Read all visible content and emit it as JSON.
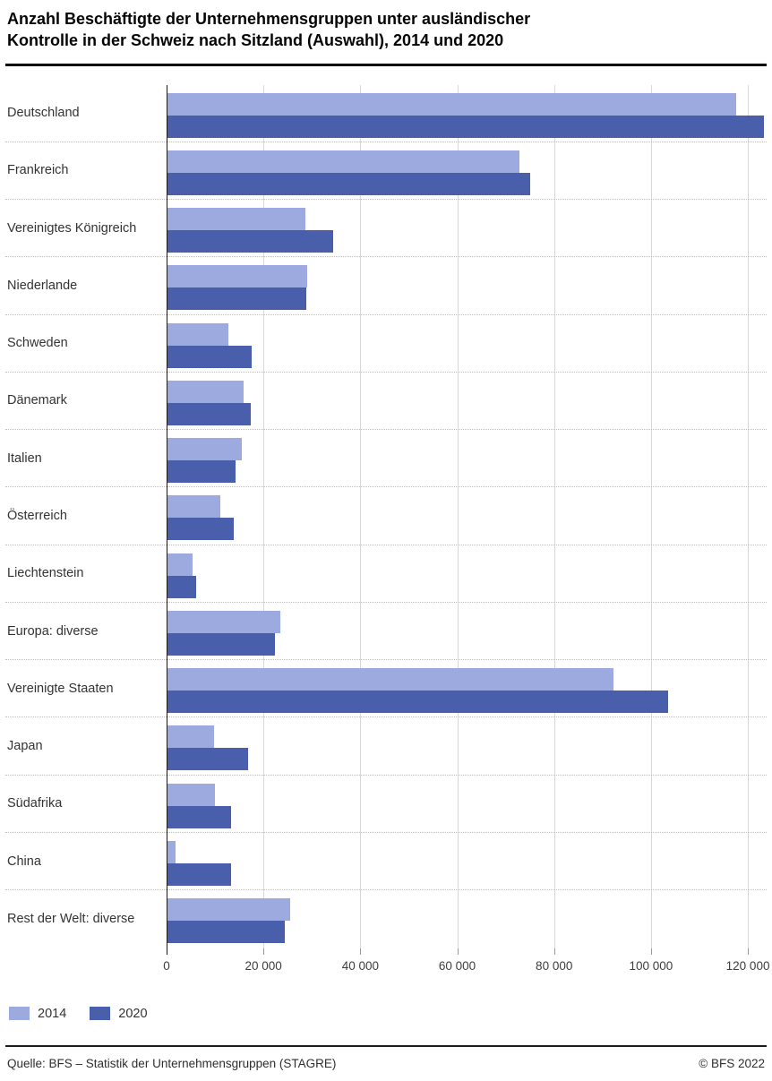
{
  "header": {
    "title_lines": [
      "Anzahl Beschäftigte der Unternehmensgruppen unter ausländischer",
      "Kontrolle in der Schweiz nach Sitzland (Auswahl), 2014 und 2020"
    ]
  },
  "chart_data": {
    "type": "bar",
    "orientation": "horizontal",
    "title": "Anzahl Beschäftigte der Unternehmensgruppen unter ausländischer Kontrolle in der Schweiz nach Sitzland (Auswahl), 2014 und 2020",
    "categories": [
      "Deutschland",
      "Frankreich",
      "Vereinigtes Königreich",
      "Niederlande",
      "Schweden",
      "Dänemark",
      "Italien",
      "Österreich",
      "Liechtenstein",
      "Europa: diverse",
      "Vereinigte Staaten",
      "Japan",
      "Südafrika",
      "China",
      "Rest der Welt: diverse"
    ],
    "series": [
      {
        "name": "2014",
        "color": "#9daadf",
        "values": [
          117300,
          72700,
          28500,
          29000,
          12700,
          15800,
          15400,
          11100,
          5300,
          23500,
          91900,
          9700,
          10000,
          1900,
          25400
        ]
      },
      {
        "name": "2020",
        "color": "#4a5fac",
        "values": [
          122900,
          74800,
          34200,
          28700,
          17500,
          17300,
          14200,
          13800,
          6000,
          22300,
          103300,
          16800,
          13200,
          13200,
          24300
        ]
      }
    ],
    "x_ticks": [
      0,
      20000,
      40000,
      60000,
      80000,
      100000,
      120000
    ],
    "x_tick_labels": [
      "0",
      "20 000",
      "40 000",
      "60 000",
      "80 000",
      "100 000",
      "120 000"
    ],
    "x_max_render": 123500,
    "xlabel": "",
    "ylabel": "",
    "grid": true,
    "legend_position": "bottom-left"
  },
  "legend": {
    "items": [
      {
        "label": "2014",
        "color": "#9daadf"
      },
      {
        "label": "2020",
        "color": "#4a5fac"
      }
    ]
  },
  "footer": {
    "source": "Quelle: BFS – Statistik der Unternehmensgruppen (STAGRE)",
    "copyright": "© BFS 2022"
  }
}
